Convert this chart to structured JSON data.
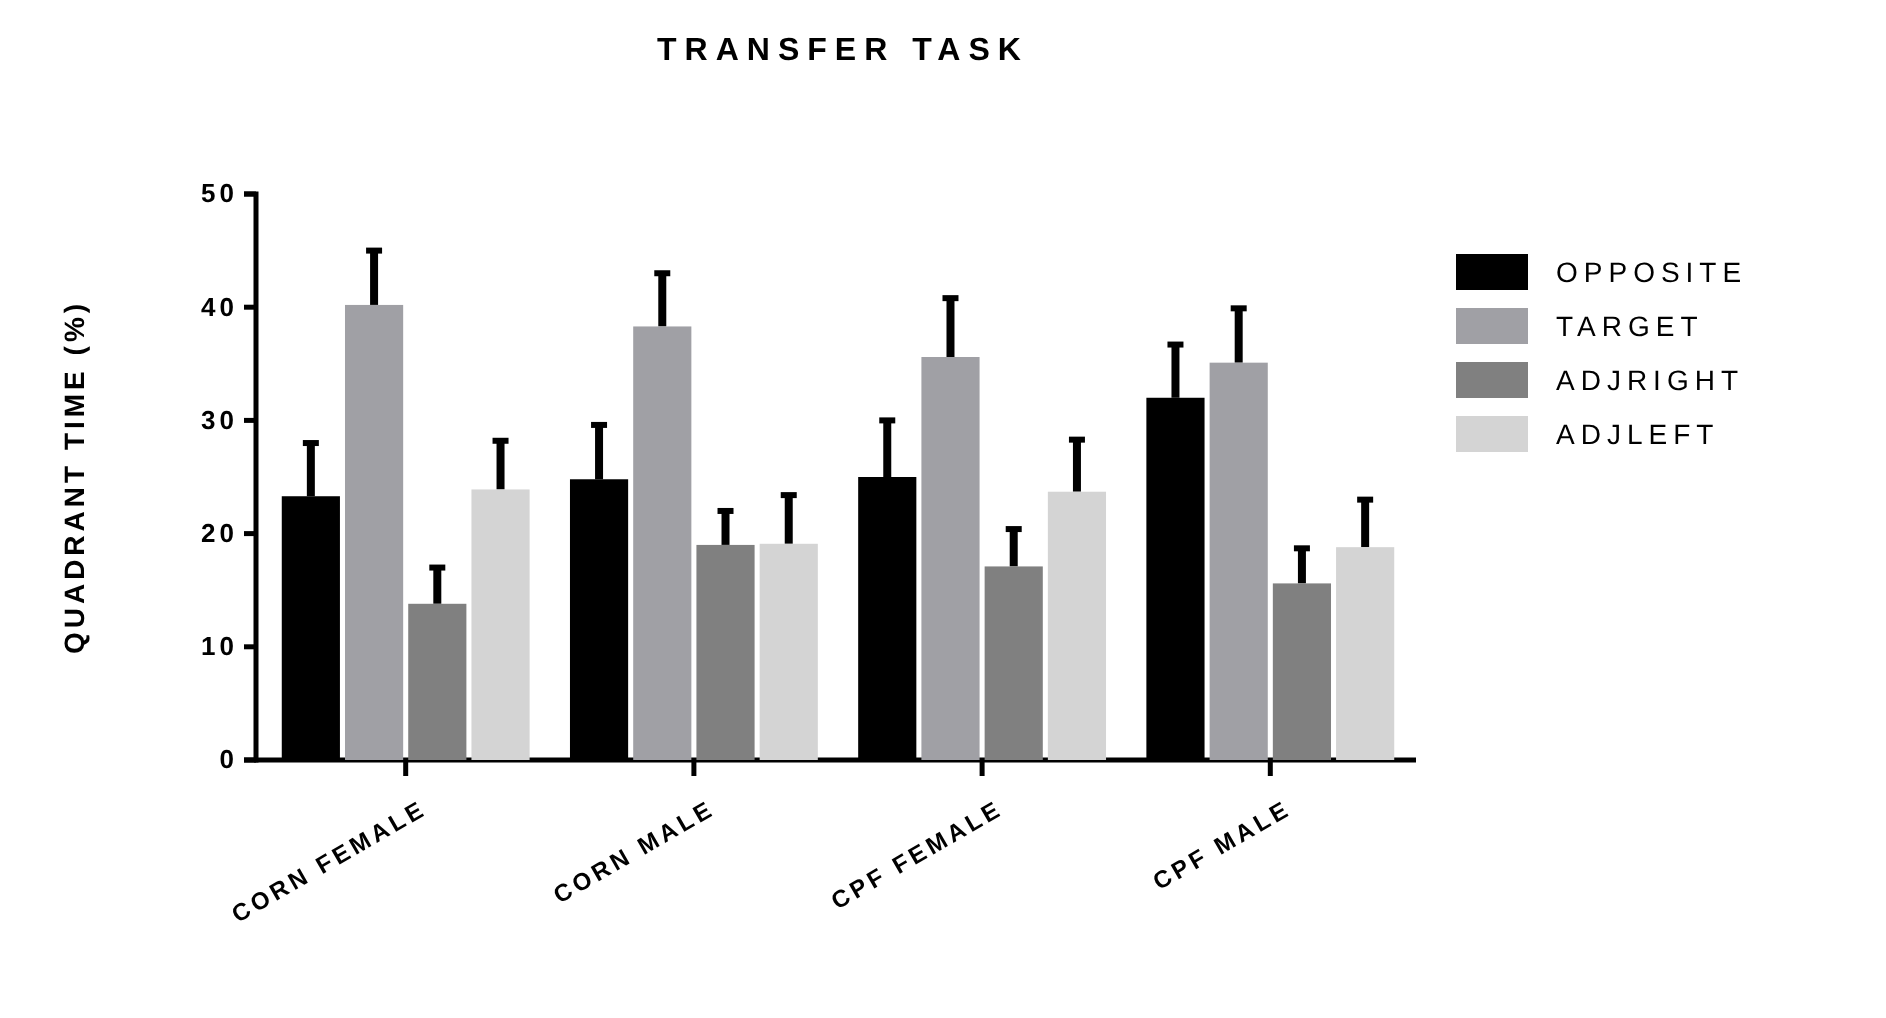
{
  "chart_data": {
    "type": "bar",
    "title": "TRANSFER TASK",
    "ylabel": "QUADRANT TIME (%)",
    "categories": [
      "CORN FEMALE",
      "CORN MALE",
      "CPF FEMALE",
      "CPF MALE"
    ],
    "series": [
      {
        "name": "OPPOSITE",
        "color": "#000000",
        "values": [
          23.3,
          24.8,
          25.0,
          32.0
        ],
        "errors": [
          [
            23.3,
            28.0
          ],
          [
            24.8,
            29.6
          ],
          [
            25.0,
            30.0
          ],
          [
            32.0,
            36.7
          ]
        ]
      },
      {
        "name": "TARGET",
        "color": "#a0a0a5",
        "values": [
          40.2,
          38.3,
          35.6,
          35.1
        ],
        "errors": [
          [
            40.2,
            45.0
          ],
          [
            38.3,
            43.0
          ],
          [
            35.6,
            40.8
          ],
          [
            35.1,
            39.9
          ]
        ]
      },
      {
        "name": "ADJRIGHT",
        "color": "#808080",
        "values": [
          13.8,
          19.0,
          17.1,
          15.6
        ],
        "errors": [
          [
            13.8,
            17.0
          ],
          [
            19.0,
            22.0
          ],
          [
            17.1,
            20.4
          ],
          [
            15.6,
            18.7
          ]
        ]
      },
      {
        "name": "ADJLEFT",
        "color": "#d4d4d4",
        "values": [
          23.9,
          19.1,
          23.7,
          18.8
        ],
        "errors": [
          [
            23.9,
            28.2
          ],
          [
            19.1,
            23.4
          ],
          [
            23.7,
            28.3
          ],
          [
            18.8,
            23.0
          ]
        ]
      }
    ],
    "ylim": [
      0,
      50
    ],
    "yticks": [
      0,
      10,
      20,
      30,
      40,
      50
    ],
    "grid": false,
    "legend": "top right"
  }
}
